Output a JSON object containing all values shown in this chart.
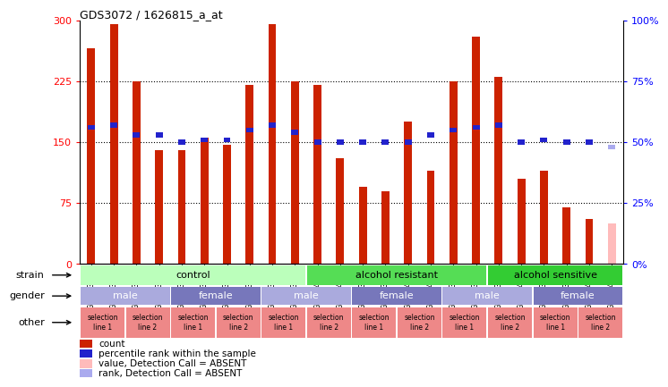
{
  "title": "GDS3072 / 1626815_a_at",
  "samples": [
    "GSM183815",
    "GSM183816",
    "GSM183990",
    "GSM183991",
    "GSM183817",
    "GSM183656",
    "GSM183992",
    "GSM183993",
    "GSM183887",
    "GSM183888",
    "GSM184121",
    "GSM184122",
    "GSM183936",
    "GSM183989",
    "GSM184123",
    "GSM184124",
    "GSM183857",
    "GSM183858",
    "GSM183994",
    "GSM184118",
    "GSM183875",
    "GSM183886",
    "GSM184119",
    "GSM184120"
  ],
  "bar_heights": [
    265,
    295,
    225,
    140,
    140,
    155,
    147,
    220,
    295,
    225,
    220,
    130,
    95,
    90,
    175,
    115,
    225,
    280,
    230,
    105,
    115,
    70,
    55,
    50
  ],
  "rank_values": [
    56,
    57,
    53,
    53,
    50,
    51,
    51,
    55,
    57,
    54,
    50,
    50,
    50,
    50,
    50,
    53,
    55,
    56,
    57,
    50,
    51,
    50,
    50,
    48
  ],
  "absent_bar": [
    false,
    false,
    false,
    false,
    false,
    false,
    false,
    false,
    false,
    false,
    false,
    false,
    false,
    false,
    false,
    false,
    false,
    false,
    false,
    false,
    false,
    false,
    false,
    true
  ],
  "absent_rank": [
    false,
    false,
    false,
    false,
    false,
    false,
    false,
    false,
    false,
    false,
    false,
    false,
    false,
    false,
    false,
    false,
    false,
    false,
    false,
    false,
    false,
    false,
    false,
    true
  ],
  "ylim": [
    0,
    300
  ],
  "yticks": [
    0,
    75,
    150,
    225,
    300
  ],
  "ytick_labels_left": [
    "0",
    "75",
    "150",
    "225",
    "300"
  ],
  "ytick_labels_right": [
    "0%",
    "25%",
    "50%",
    "75%",
    "100%"
  ],
  "bar_color": "#cc2200",
  "absent_bar_color": "#ffbbbb",
  "rank_color": "#2222cc",
  "absent_rank_color": "#aaaaee",
  "strain_row": {
    "label": "strain",
    "groups": [
      {
        "text": "control",
        "span": 10,
        "color": "#bbffbb"
      },
      {
        "text": "alcohol resistant",
        "span": 8,
        "color": "#55dd55"
      },
      {
        "text": "alcohol sensitive",
        "span": 6,
        "color": "#33cc33"
      }
    ]
  },
  "gender_row": {
    "label": "gender",
    "groups": [
      {
        "text": "male",
        "span": 4,
        "color": "#aaaadd"
      },
      {
        "text": "female",
        "span": 4,
        "color": "#7777bb"
      },
      {
        "text": "male",
        "span": 4,
        "color": "#aaaadd"
      },
      {
        "text": "female",
        "span": 4,
        "color": "#7777bb"
      },
      {
        "text": "male",
        "span": 4,
        "color": "#aaaadd"
      },
      {
        "text": "female",
        "span": 4,
        "color": "#7777bb"
      }
    ]
  },
  "other_row": {
    "label": "other",
    "cells": [
      {
        "text": "selection\nline 1",
        "color": "#ee8888"
      },
      {
        "text": "selection\nline 2",
        "color": "#ee8888"
      },
      {
        "text": "selection\nline 1",
        "color": "#ee8888"
      },
      {
        "text": "selection\nline 2",
        "color": "#ee8888"
      },
      {
        "text": "selection\nline 1",
        "color": "#ee8888"
      },
      {
        "text": "selection\nline 2",
        "color": "#ee8888"
      },
      {
        "text": "selection\nline 1",
        "color": "#ee8888"
      },
      {
        "text": "selection\nline 2",
        "color": "#ee8888"
      },
      {
        "text": "selection\nline 1",
        "color": "#ee8888"
      },
      {
        "text": "selection\nline 2",
        "color": "#ee8888"
      },
      {
        "text": "selection\nline 1",
        "color": "#ee8888"
      },
      {
        "text": "selection\nline 2",
        "color": "#ee8888"
      }
    ]
  },
  "legend_items": [
    {
      "color": "#cc2200",
      "label": "count"
    },
    {
      "color": "#2222cc",
      "label": "percentile rank within the sample"
    },
    {
      "color": "#ffbbbb",
      "label": "value, Detection Call = ABSENT"
    },
    {
      "color": "#aaaaee",
      "label": "rank, Detection Call = ABSENT"
    }
  ]
}
